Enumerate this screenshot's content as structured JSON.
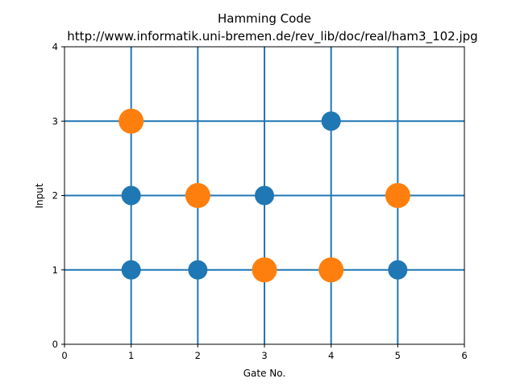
{
  "chart_data": {
    "type": "scatter",
    "title": "Hamming Code",
    "subtitle": "http://www.informatik.uni-bremen.de/rev_lib/doc/real/ham3_102.jpg",
    "xlabel": "Gate No.",
    "ylabel": "Input",
    "xlim": [
      0,
      6
    ],
    "ylim": [
      0,
      4
    ],
    "xticks": [
      0,
      1,
      2,
      3,
      4,
      5,
      6
    ],
    "yticks": [
      0,
      1,
      2,
      3,
      4
    ],
    "grid": false,
    "wires": [
      1,
      2,
      3
    ],
    "gate_lines": [
      1,
      2,
      3,
      4,
      5
    ],
    "line_color": "#1f77b4",
    "series": [
      {
        "color": "#1f77b4",
        "marker_size": "small",
        "points": [
          {
            "x": 1,
            "y": 1
          },
          {
            "x": 1,
            "y": 2
          },
          {
            "x": 2,
            "y": 1
          },
          {
            "x": 3,
            "y": 2
          },
          {
            "x": 4,
            "y": 3
          },
          {
            "x": 5,
            "y": 1
          }
        ]
      },
      {
        "color": "#ff7f0e",
        "marker_size": "large",
        "points": [
          {
            "x": 1,
            "y": 3
          },
          {
            "x": 2,
            "y": 2
          },
          {
            "x": 3,
            "y": 1
          },
          {
            "x": 4,
            "y": 1
          },
          {
            "x": 5,
            "y": 2
          }
        ]
      }
    ]
  }
}
